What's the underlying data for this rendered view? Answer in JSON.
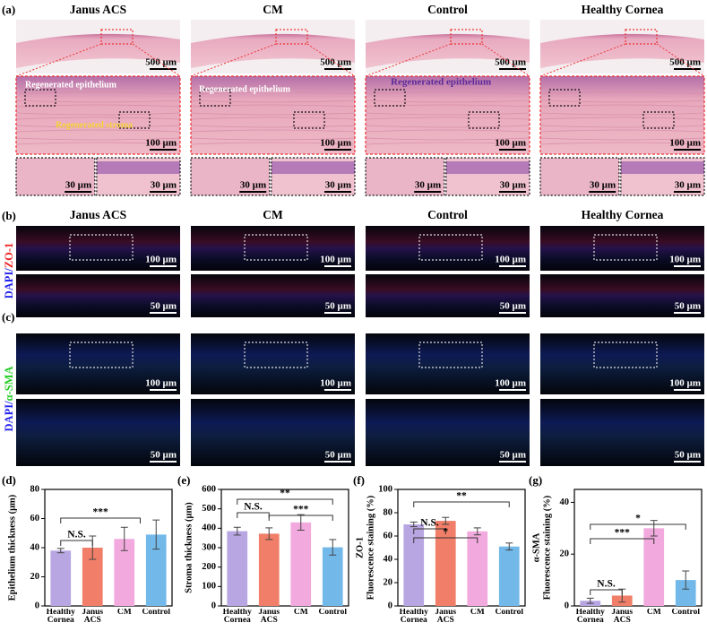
{
  "panel_labels": [
    "(a)",
    "(b)",
    "(c)",
    "(d)",
    "(e)",
    "(f)",
    "(g)"
  ],
  "columns": [
    "Janus ACS",
    "CM",
    "Control",
    "Healthy Cornea"
  ],
  "panel_a": {
    "scale_bars": [
      "500 µm",
      "100 µm",
      "30 µm"
    ],
    "annotations": [
      "Regenerated epithelium",
      "Regenerated stroma"
    ]
  },
  "panel_b": {
    "stain": [
      "DAPI/",
      "ZO-1"
    ],
    "scale_bars": [
      "100 µm",
      "50 µm"
    ]
  },
  "panel_c": {
    "stain": [
      "DAPI/",
      "α-SMA"
    ],
    "scale_bars": [
      "100 µm",
      "50 µm"
    ]
  },
  "chart_data": [
    {
      "type": "bar",
      "ylabel": [
        "Epithelium thickness (μm)"
      ],
      "categories": [
        "Healthy Cornea",
        "Janus ACS",
        "CM",
        "Control"
      ],
      "values": [
        38,
        40,
        46,
        49
      ],
      "errors": [
        1.5,
        8,
        8,
        10
      ],
      "colors": [
        "#b8a6e2",
        "#f07e68",
        "#f2a9dd",
        "#72b9ea"
      ],
      "ylim": [
        0,
        80
      ],
      "yticks": [
        0,
        20,
        40,
        60,
        80
      ],
      "annotations": [
        "N.S.",
        "***"
      ]
    },
    {
      "type": "bar",
      "ylabel": [
        "Stroma thickness (μm)"
      ],
      "categories": [
        "Healthy Cornea",
        "Janus ACS",
        "CM",
        "Control"
      ],
      "values": [
        385,
        372,
        430,
        302
      ],
      "errors": [
        20,
        30,
        40,
        40
      ],
      "colors": [
        "#b8a6e2",
        "#f07e68",
        "#f2a9dd",
        "#72b9ea"
      ],
      "ylim": [
        0,
        600
      ],
      "yticks": [
        0,
        100,
        200,
        300,
        400,
        500,
        600
      ],
      "annotations": [
        "**",
        "N.S.",
        "***"
      ]
    },
    {
      "type": "bar",
      "ylabel": [
        "ZO-1",
        "Fluorescence staining (%)"
      ],
      "categories": [
        "Healthy Cornea",
        "Janus ACS",
        "CM",
        "Control"
      ],
      "values": [
        70,
        73,
        64,
        51
      ],
      "errors": [
        2,
        3,
        3,
        3
      ],
      "colors": [
        "#b8a6e2",
        "#f07e68",
        "#f2a9dd",
        "#72b9ea"
      ],
      "ylim": [
        0,
        100
      ],
      "yticks": [
        0,
        20,
        40,
        60,
        80,
        100
      ],
      "annotations": [
        "**",
        "N.S.",
        "*"
      ]
    },
    {
      "type": "bar",
      "ylabel": [
        "α-SMA",
        "Fluorescence staining (%)"
      ],
      "categories": [
        "Healthy Cornea",
        "Janus ACS",
        "CM",
        "Control"
      ],
      "values": [
        2,
        4,
        30,
        10
      ],
      "errors": [
        1,
        2.5,
        3,
        3.5
      ],
      "colors": [
        "#b8a6e2",
        "#f07e68",
        "#f2a9dd",
        "#72b9ea"
      ],
      "ylim": [
        0,
        45
      ],
      "yticks": [
        0,
        20,
        40
      ],
      "annotations": [
        "*",
        "***",
        "N.S."
      ]
    }
  ]
}
